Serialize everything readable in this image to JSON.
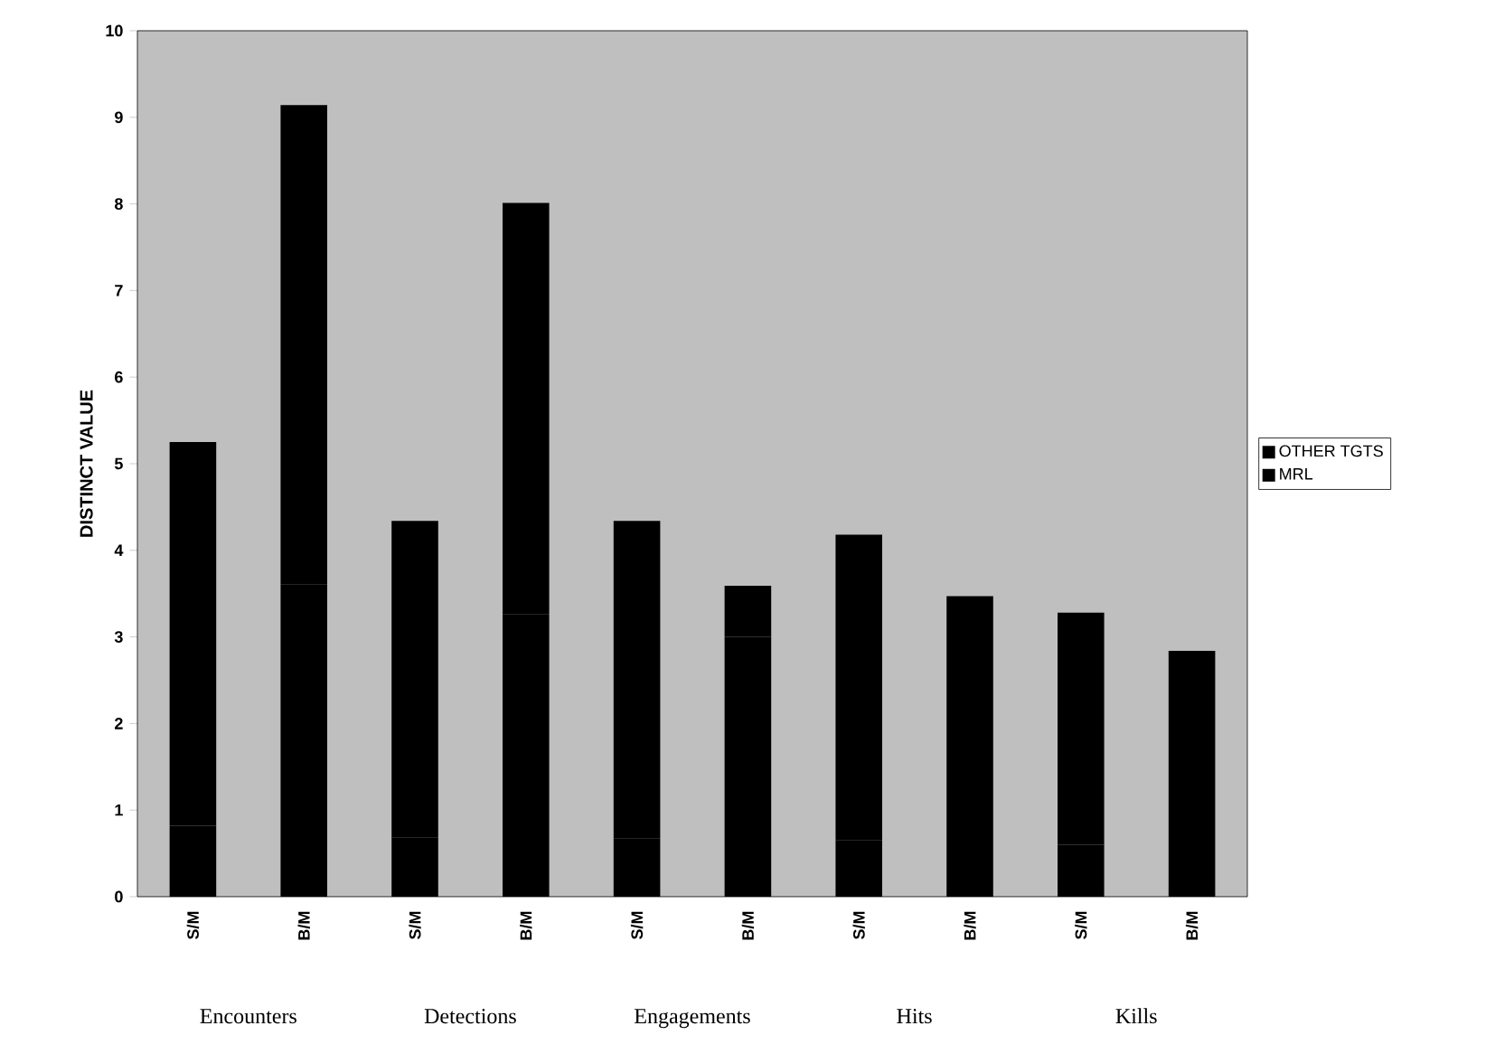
{
  "chart_data": {
    "type": "bar",
    "stacked": true,
    "categories": [
      "S/M",
      "B/M",
      "S/M",
      "B/M",
      "S/M",
      "B/M",
      "S/M",
      "B/M",
      "S/M",
      "B/M"
    ],
    "series": [
      {
        "name": "MRL",
        "color": "#000000",
        "values": [
          0.82,
          3.61,
          0.68,
          3.26,
          0.67,
          3.0,
          0.65,
          2.84,
          0.6,
          2.36
        ]
      },
      {
        "name": "OTHER TGTS",
        "color": "#000000",
        "values": [
          4.43,
          5.53,
          3.66,
          4.75,
          3.67,
          0.59,
          3.53,
          0.63,
          2.68,
          0.48
        ]
      }
    ],
    "ylabel": "DISTINCT VALUE",
    "ylim": [
      0,
      10
    ],
    "yticks": [
      0,
      1,
      2,
      3,
      4,
      5,
      6,
      7,
      8,
      9,
      10
    ],
    "annotations": [
      "Encounters",
      "Detections",
      "Engagements",
      "Hits",
      "Kills"
    ],
    "legend": "right",
    "grid": false
  }
}
